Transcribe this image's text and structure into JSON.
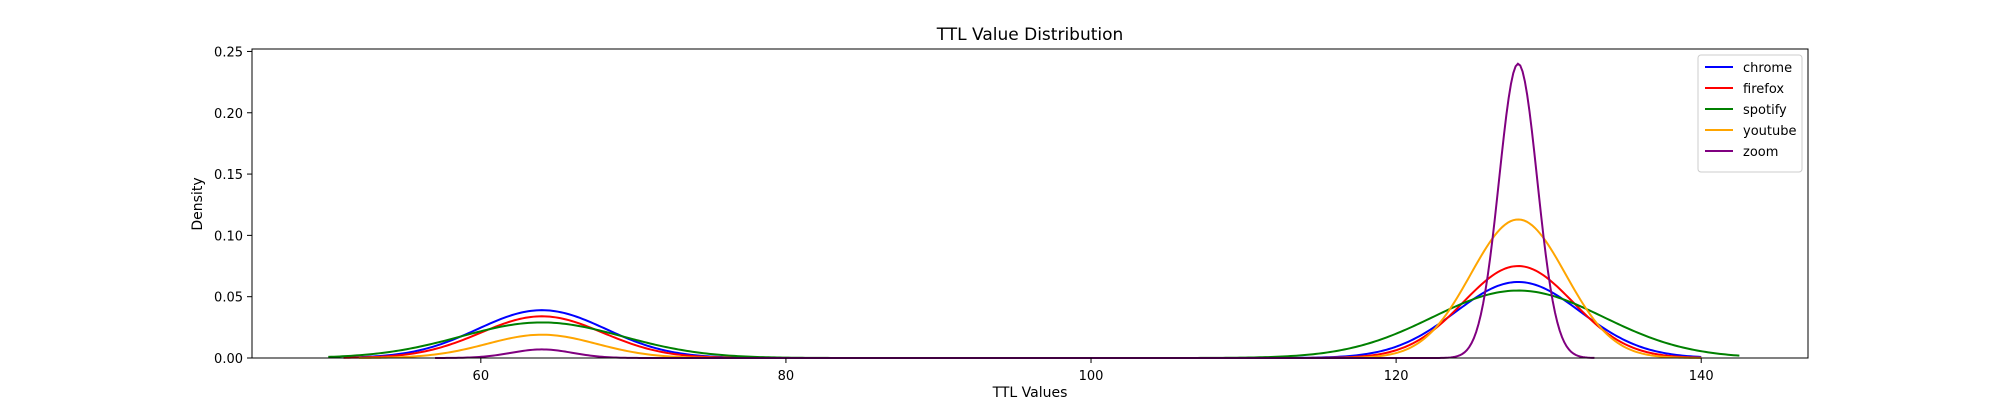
{
  "chart_data": {
    "type": "line",
    "title": "TTL Value Distribution",
    "xlabel": "TTL Values",
    "ylabel": "Density",
    "xlim": [
      45,
      147
    ],
    "ylim": [
      0,
      0.252
    ],
    "xticks": [
      60,
      80,
      100,
      120,
      140
    ],
    "yticks": [
      0.0,
      0.05,
      0.1,
      0.15,
      0.2,
      0.25
    ],
    "xtick_labels": [
      "60",
      "80",
      "100",
      "120",
      "140"
    ],
    "ytick_labels": [
      "0.00",
      "0.05",
      "0.10",
      "0.15",
      "0.20",
      "0.25"
    ],
    "grid": false,
    "legend_position": "top-right",
    "series": [
      {
        "name": "chrome",
        "color": "#0000ff",
        "x_range": [
          51,
          140
        ],
        "peaks": [
          {
            "x": 64,
            "y": 0.039,
            "sd": 4.2
          },
          {
            "x": 128,
            "y": 0.062,
            "sd": 4.1
          }
        ]
      },
      {
        "name": "firefox",
        "color": "#ff0000",
        "x_range": [
          51,
          140
        ],
        "peaks": [
          {
            "x": 64,
            "y": 0.034,
            "sd": 4.0
          },
          {
            "x": 128,
            "y": 0.075,
            "sd": 3.6
          }
        ]
      },
      {
        "name": "spotify",
        "color": "#008000",
        "x_range": [
          50,
          142.5
        ],
        "peaks": [
          {
            "x": 64,
            "y": 0.029,
            "sd": 5.3
          },
          {
            "x": 128,
            "y": 0.055,
            "sd": 5.6
          }
        ]
      },
      {
        "name": "youtube",
        "color": "#ffa500",
        "x_range": [
          52,
          140
        ],
        "peaks": [
          {
            "x": 64,
            "y": 0.019,
            "sd": 3.6
          },
          {
            "x": 128,
            "y": 0.113,
            "sd": 3.1
          }
        ]
      },
      {
        "name": "zoom",
        "color": "#800080",
        "x_range": [
          57,
          133
        ],
        "peaks": [
          {
            "x": 64,
            "y": 0.007,
            "sd": 2.0
          },
          {
            "x": 128,
            "y": 0.24,
            "sd": 1.25
          }
        ]
      }
    ]
  }
}
